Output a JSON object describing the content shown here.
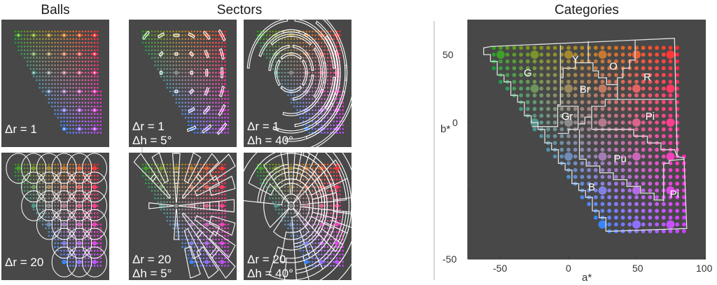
{
  "titles": {
    "balls": "Balls",
    "sectors": "Sectors",
    "categories": "Categories"
  },
  "panels": {
    "balls_top": "Δr = 1",
    "balls_bottom": "Δr = 20",
    "sectors_top_left": [
      "Δr = 1",
      "Δh = 5°"
    ],
    "sectors_top_right": [
      "Δr = 1",
      "Δh = 40°"
    ],
    "sectors_bottom_left": [
      "Δr = 20",
      "Δh = 5°"
    ],
    "sectors_bottom_right": [
      "Δr = 20",
      "Δh = 40°"
    ]
  },
  "colors": {
    "panel_bg": "#484848",
    "outline": "#ffffff",
    "divider": "#b0b0b0"
  },
  "chart_data": {
    "type": "scatter",
    "title": "Categories",
    "xlabel": "a*",
    "ylabel": "b*",
    "xlim": [
      -75,
      100
    ],
    "ylim": [
      -50,
      75
    ],
    "xticks": [
      "-50",
      "0",
      "50",
      "100"
    ],
    "yticks": [
      "-50",
      "0",
      "50"
    ],
    "grid": false,
    "points": {
      "a_range": [
        -55,
        85
      ],
      "b_range": [
        -80,
        55
      ],
      "step": 5
    },
    "category_labels": [
      "G",
      "Y",
      "O",
      "R",
      "Br",
      "Gr",
      "Pi",
      "Pu",
      "B",
      "Pi"
    ]
  }
}
